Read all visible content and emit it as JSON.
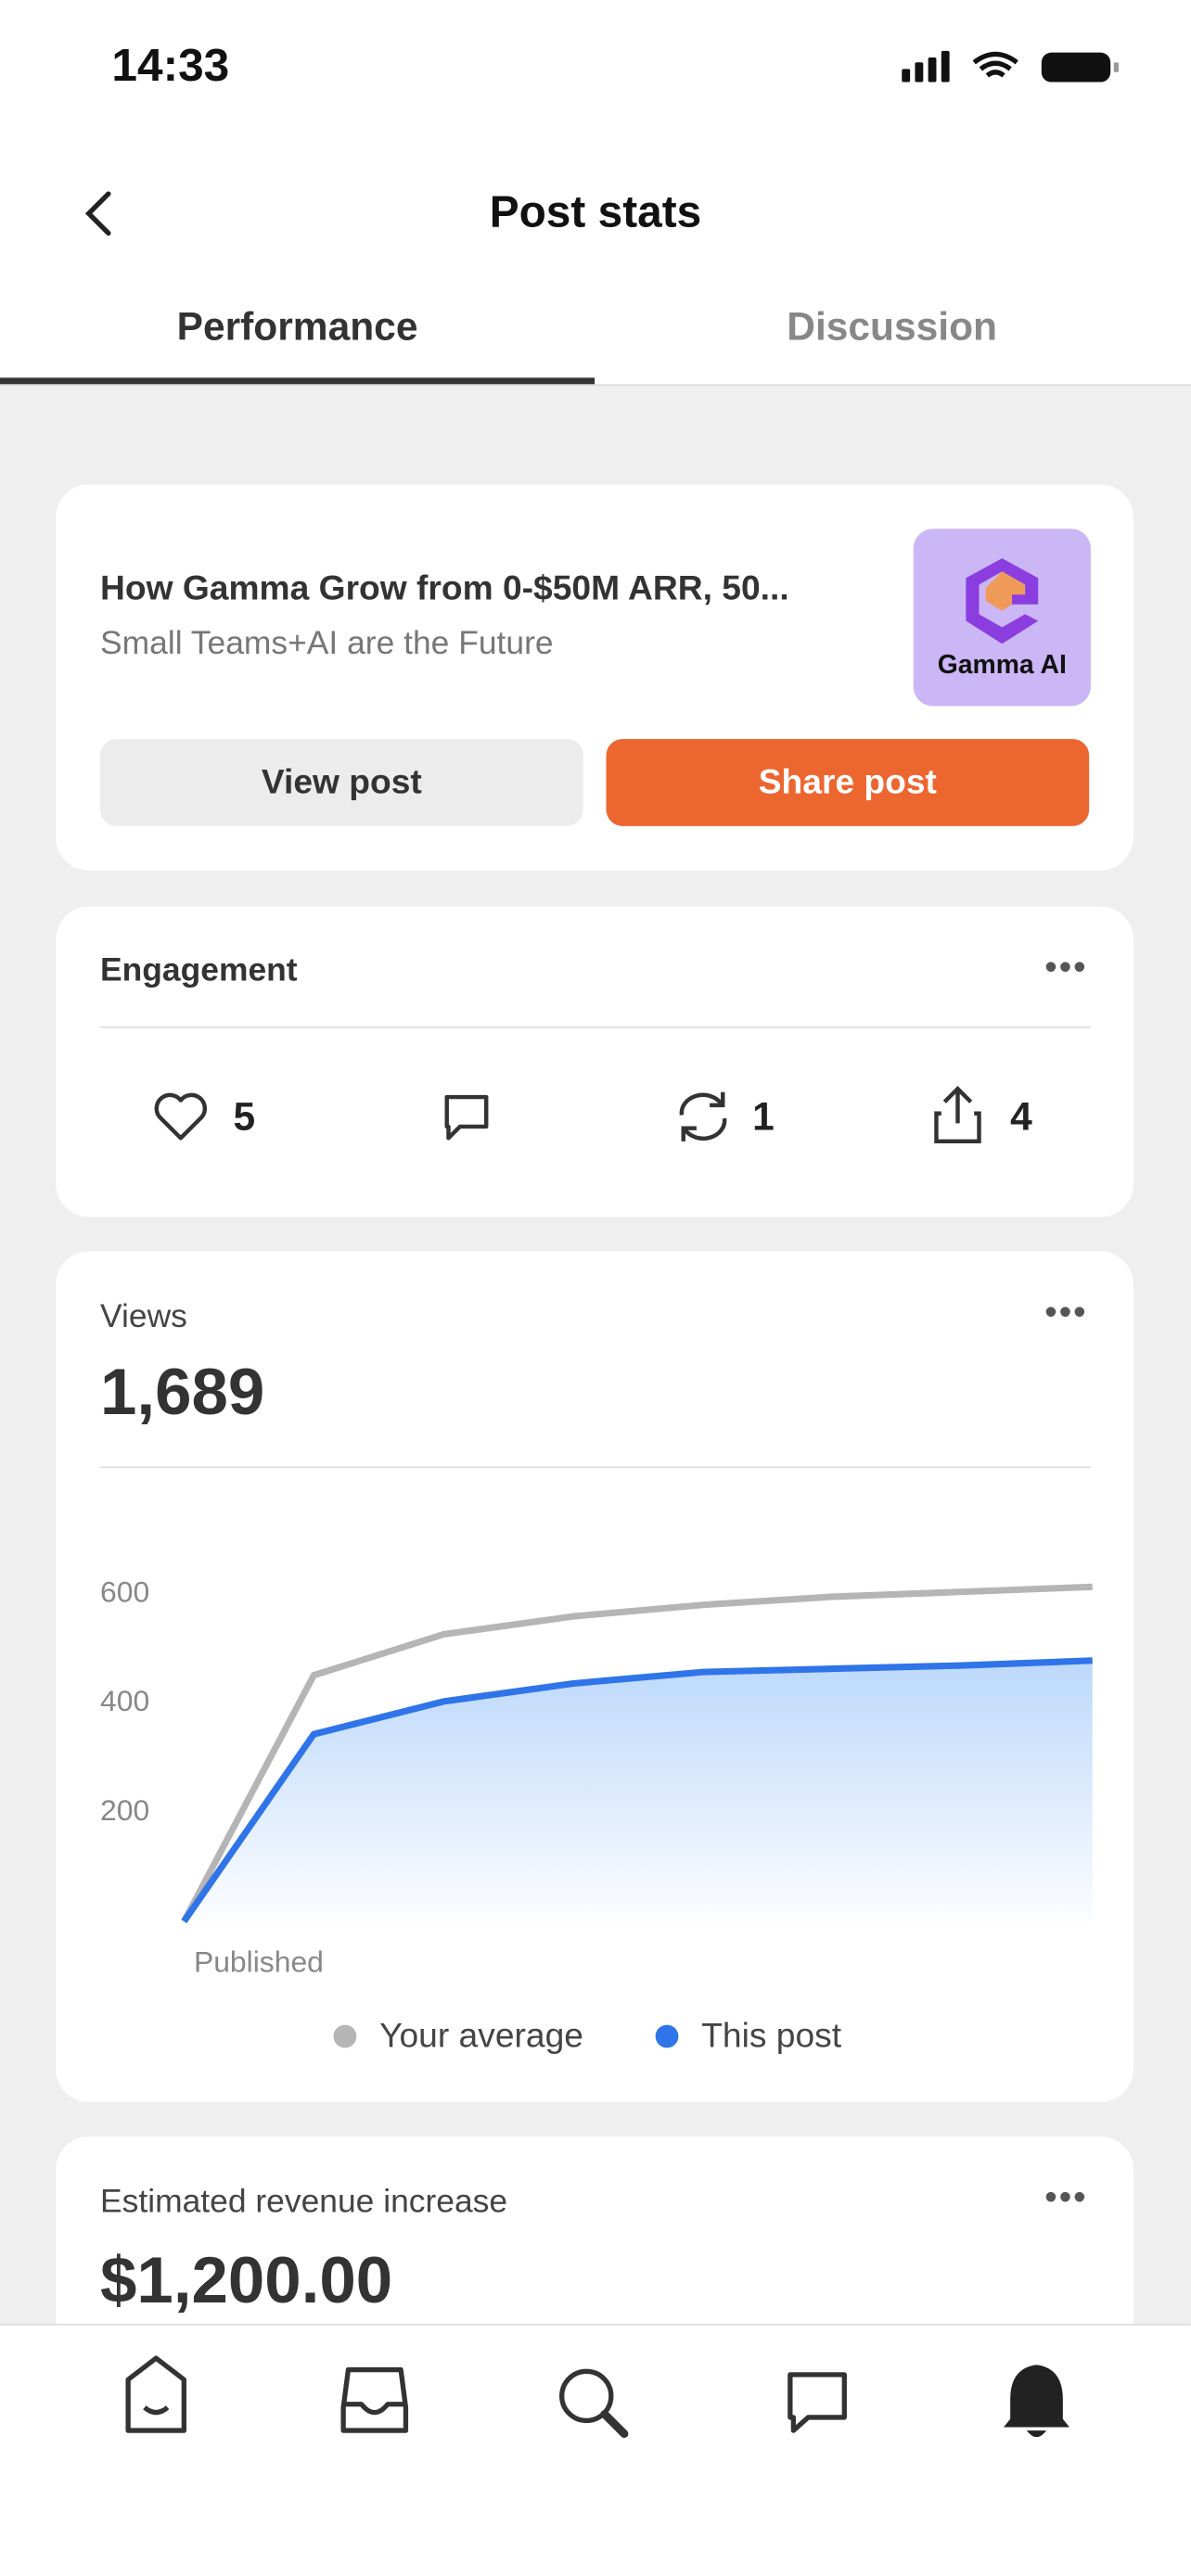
{
  "status_bar": {
    "time": "14:33"
  },
  "header": {
    "title": "Post stats"
  },
  "tabs": [
    "Performance",
    "Discussion"
  ],
  "post": {
    "title": "How Gamma Grow from 0-$50M ARR, 50...",
    "subtitle": "Small Teams+AI are the Future",
    "logo_label": "Gamma AI",
    "view_button": "View post",
    "share_button": "Share post"
  },
  "engagement": {
    "title": "Engagement",
    "likes": 5,
    "restacks": 1,
    "shares": 4
  },
  "views": {
    "label": "Views",
    "value": "1,689"
  },
  "chart_data": {
    "type": "line",
    "categories": [
      "Published",
      null,
      null,
      null,
      null,
      null,
      null,
      null
    ],
    "series": [
      {
        "name": "Your average",
        "color": "#b5b5b5",
        "values": [
          0,
          451,
          526,
          559,
          580,
          595,
          604,
          613
        ]
      },
      {
        "name": "This post",
        "color": "#2f74e8",
        "values": [
          0,
          343,
          403,
          436,
          457,
          463,
          469,
          478
        ]
      }
    ],
    "ylim": [
      0,
      650
    ],
    "yticks": [
      200,
      400,
      600
    ],
    "grid": false
  },
  "revenue": {
    "label": "Estimated revenue increase",
    "value": "$1,200.00"
  }
}
